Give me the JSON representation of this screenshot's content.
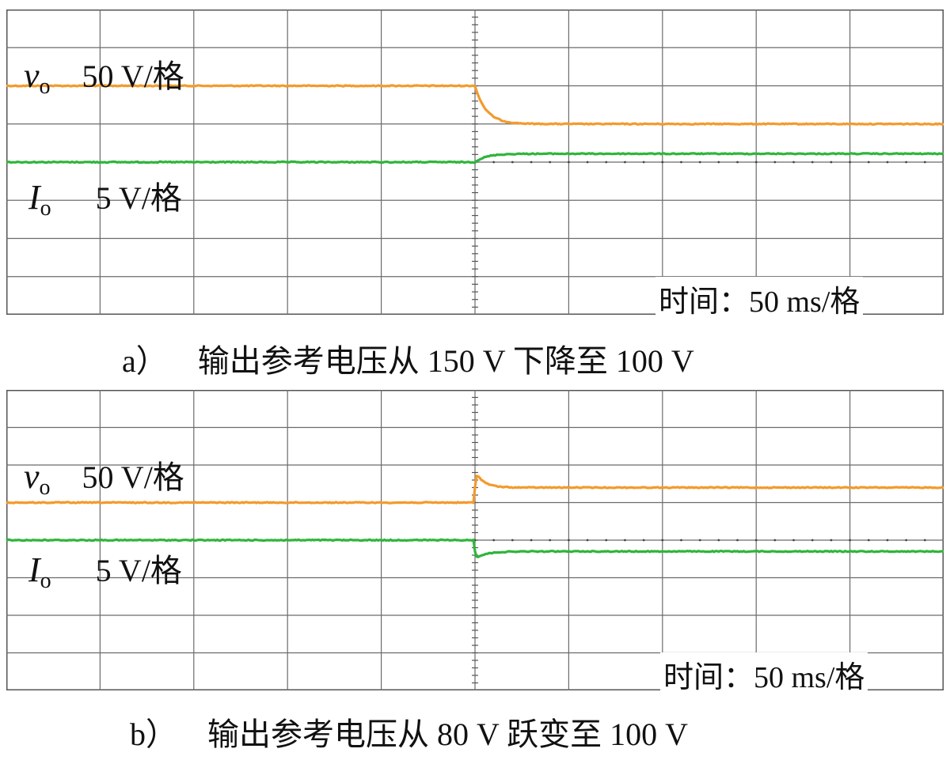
{
  "chart_data": [
    {
      "type": "line",
      "caption_tag": "a）",
      "caption": "输出参考电压从 150 V 下降至 100 V",
      "time_scale": "时间：50 ms/格",
      "grid": true,
      "divisions": {
        "x": 10,
        "y": 8
      },
      "x_range": [
        0,
        10
      ],
      "y_range": [
        8,
        0
      ],
      "step_at": 5,
      "series": [
        {
          "symbol": "v",
          "subscript": "o",
          "scale": "50 V/格",
          "color": "#f39a2c",
          "before": 2.0,
          "after": 3.0,
          "shape": "fall"
        },
        {
          "symbol": "I",
          "subscript": "o",
          "scale": "5 V/格",
          "color": "#2fb53b",
          "before": 4.0,
          "after": 3.78,
          "shape": "rise"
        }
      ]
    },
    {
      "type": "line",
      "caption_tag": "b）",
      "caption": "输出参考电压从 80 V 跃变至 100 V",
      "time_scale": "时间：50 ms/格",
      "grid": true,
      "divisions": {
        "x": 10,
        "y": 8
      },
      "x_range": [
        0,
        10
      ],
      "y_range": [
        8,
        0
      ],
      "step_at": 5,
      "series": [
        {
          "symbol": "v",
          "subscript": "o",
          "scale": "50 V/格",
          "color": "#f39a2c",
          "before": 3.0,
          "after": 2.6,
          "shape": "overshoot"
        },
        {
          "symbol": "I",
          "subscript": "o",
          "scale": "5 V/格",
          "color": "#2fb53b",
          "before": 4.0,
          "after": 4.3,
          "shape": "undershoot"
        }
      ]
    }
  ]
}
